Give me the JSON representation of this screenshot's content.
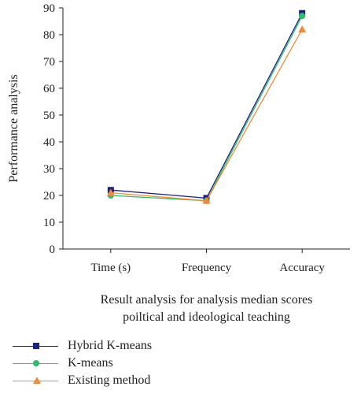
{
  "chart_data": {
    "type": "line",
    "categories": [
      "Time (s)",
      "Frequency",
      "Accuracy"
    ],
    "series": [
      {
        "name": "Hybrid K-means",
        "values": [
          22,
          19,
          88
        ],
        "color": "#1a237e",
        "marker": "square"
      },
      {
        "name": "K-means",
        "values": [
          20,
          18,
          87
        ],
        "color": "#2ebd6b",
        "marker": "circle"
      },
      {
        "name": "Existing method",
        "values": [
          21,
          18,
          82
        ],
        "color": "#f08a3c",
        "marker": "triangle"
      }
    ],
    "ylabel": "Performance analysis",
    "xlabel_lines": [
      "Result analysis for analysis median scores",
      "poiltical and ideological teaching"
    ],
    "ylim": [
      0,
      90
    ],
    "yticks": [
      "0",
      "10",
      "20",
      "30",
      "40",
      "50",
      "60",
      "70",
      "80",
      "90"
    ],
    "grid": false,
    "legend": "bottom-left"
  }
}
